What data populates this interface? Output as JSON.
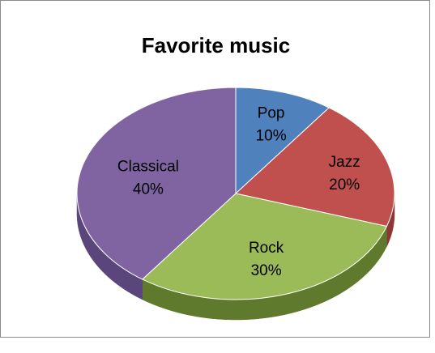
{
  "chart_data": {
    "type": "pie",
    "title": "Favorite music",
    "slices": [
      {
        "name": "Pop",
        "value": 10,
        "label": "10%",
        "color": "#4f81bd",
        "side": "#3a6390"
      },
      {
        "name": "Jazz",
        "value": 20,
        "label": "20%",
        "color": "#c0504d",
        "side": "#8f3533"
      },
      {
        "name": "Rock",
        "value": 30,
        "label": "30%",
        "color": "#9bbb59",
        "side": "#5f7a2c"
      },
      {
        "name": "Classical",
        "value": 40,
        "label": "40%",
        "color": "#8064a2",
        "side": "#5a467a"
      }
    ],
    "style": "3d"
  }
}
